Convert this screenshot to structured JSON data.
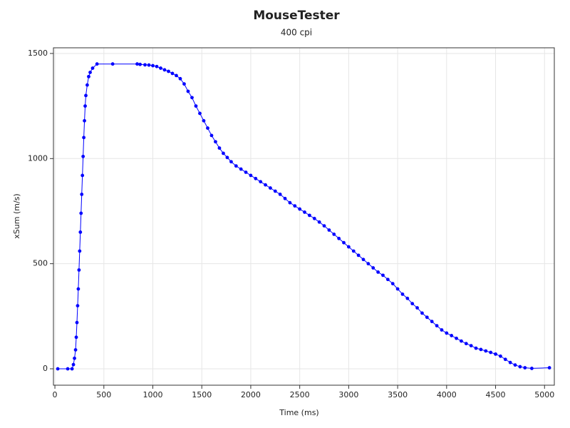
{
  "chart_data": {
    "type": "line",
    "title": "MouseTester",
    "subtitle": "400 cpi",
    "x_label": "Time (ms)",
    "y_label": "xSum (m/s)",
    "xlim": [
      -15,
      5100
    ],
    "ylim": [
      -78,
      1527
    ],
    "xticks": [
      0,
      500,
      1000,
      1500,
      2000,
      2500,
      3000,
      3500,
      4000,
      4500,
      5000
    ],
    "yticks": [
      0,
      500,
      1000,
      1500
    ],
    "grid": true,
    "x": [
      29,
      131,
      175,
      189,
      200,
      211,
      218,
      225,
      232,
      239,
      246,
      253,
      260,
      267,
      274,
      281,
      288,
      295,
      302,
      309,
      316,
      330,
      345,
      360,
      385,
      430,
      590,
      840,
      870,
      920,
      960,
      1000,
      1040,
      1080,
      1120,
      1160,
      1200,
      1240,
      1280,
      1320,
      1360,
      1400,
      1440,
      1480,
      1520,
      1560,
      1600,
      1640,
      1680,
      1720,
      1760,
      1800,
      1850,
      1900,
      1950,
      2000,
      2050,
      2100,
      2150,
      2200,
      2250,
      2300,
      2350,
      2400,
      2450,
      2500,
      2550,
      2600,
      2650,
      2700,
      2750,
      2800,
      2850,
      2900,
      2950,
      3000,
      3050,
      3100,
      3150,
      3200,
      3250,
      3300,
      3350,
      3400,
      3450,
      3500,
      3550,
      3600,
      3650,
      3700,
      3750,
      3800,
      3850,
      3900,
      3950,
      4000,
      4050,
      4100,
      4150,
      4200,
      4250,
      4300,
      4350,
      4400,
      4450,
      4500,
      4550,
      4600,
      4650,
      4700,
      4750,
      4800,
      4870,
      5050
    ],
    "series": [
      {
        "name": "xSum",
        "color": "#0000ff",
        "values": [
          0,
          0,
          0,
          20,
          50,
          90,
          150,
          220,
          300,
          380,
          470,
          560,
          650,
          740,
          830,
          920,
          1010,
          1100,
          1180,
          1250,
          1300,
          1350,
          1390,
          1410,
          1430,
          1450,
          1450,
          1450,
          1448,
          1446,
          1445,
          1442,
          1438,
          1430,
          1422,
          1415,
          1405,
          1395,
          1380,
          1355,
          1320,
          1290,
          1250,
          1215,
          1180,
          1145,
          1110,
          1080,
          1050,
          1025,
          1005,
          985,
          965,
          950,
          935,
          920,
          905,
          890,
          875,
          860,
          845,
          830,
          810,
          790,
          775,
          760,
          745,
          730,
          715,
          698,
          680,
          660,
          640,
          620,
          600,
          580,
          560,
          540,
          520,
          500,
          480,
          460,
          445,
          425,
          405,
          380,
          355,
          335,
          310,
          290,
          265,
          245,
          225,
          205,
          185,
          170,
          158,
          145,
          132,
          120,
          110,
          98,
          92,
          85,
          78,
          70,
          60,
          45,
          30,
          18,
          10,
          5,
          2,
          5
        ]
      }
    ]
  }
}
